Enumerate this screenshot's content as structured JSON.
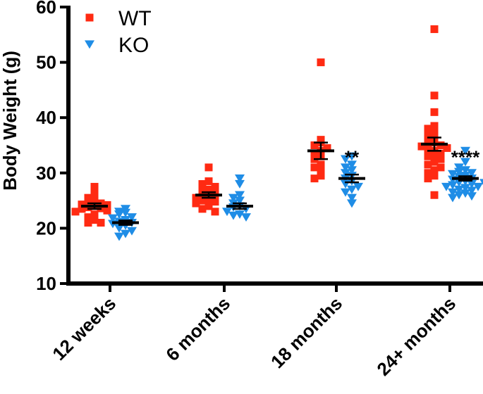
{
  "chart_data": {
    "type": "scatter",
    "title": "",
    "xlabel": "",
    "ylabel": "Body  Weight (g)",
    "ylim": [
      10,
      60
    ],
    "yticks": [
      "10",
      "20",
      "30",
      "40",
      "50",
      "60"
    ],
    "grid": false,
    "legend_position": "top-left",
    "categories": [
      "12 weeks",
      "6 months",
      "18 months",
      "24+ months"
    ],
    "colors": {
      "WT": "#ff2a12",
      "KO": "#1f8de6",
      "stat": "#000000"
    },
    "series": [
      {
        "name": "WT",
        "marker": "square",
        "groups": [
          {
            "category": "12 weeks",
            "mean": 24.0,
            "sem": 0.5,
            "values": [
              27.5,
              27.3,
              26.0,
              25.5,
              25.0,
              24.8,
              24.5,
              24.3,
              24.2,
              24.0,
              23.8,
              23.6,
              23.5,
              23.2,
              23.0,
              22.5,
              22.0,
              21.5,
              21.0,
              21.0
            ]
          },
          {
            "category": "6 months",
            "mean": 26.0,
            "sem": 0.5,
            "values": [
              31.0,
              28.5,
              28.0,
              27.5,
              27.0,
              26.8,
              26.5,
              26.3,
              26.0,
              25.8,
              25.5,
              25.2,
              25.0,
              24.8,
              24.5,
              24.0,
              23.5,
              23.0
            ]
          },
          {
            "category": "18 months",
            "mean": 34.0,
            "sem": 1.5,
            "values": [
              50.0,
              36.0,
              35.5,
              35.0,
              34.5,
              34.0,
              33.5,
              33.0,
              32.5,
              31.5,
              31.0,
              30.5,
              29.5,
              29.0
            ]
          },
          {
            "category": "24+ months",
            "mean": 35.2,
            "sem": 1.2,
            "values": [
              56.0,
              44.0,
              41.0,
              38.5,
              38.0,
              37.5,
              37.0,
              36.5,
              36.0,
              35.5,
              35.0,
              35.0,
              34.8,
              34.5,
              34.0,
              33.8,
              33.5,
              33.2,
              33.0,
              32.5,
              32.0,
              31.5,
              31.0,
              30.5,
              30.0,
              29.5,
              29.0,
              26.0
            ]
          }
        ]
      },
      {
        "name": "KO",
        "marker": "triangle-down",
        "groups": [
          {
            "category": "12 weeks",
            "mean": 21.0,
            "sem": 0.4,
            "values": [
              23.5,
              23.0,
              22.8,
              22.5,
              22.0,
              21.8,
              21.5,
              21.2,
              21.0,
              20.8,
              20.5,
              20.0,
              19.5,
              19.0,
              18.5
            ]
          },
          {
            "category": "6 months",
            "mean": 24.0,
            "sem": 0.5,
            "values": [
              29.0,
              28.0,
              26.0,
              25.5,
              25.0,
              24.5,
              24.0,
              23.8,
              23.5,
              23.0,
              22.5,
              22.3,
              22.0
            ]
          },
          {
            "category": "18 months",
            "mean": 29.0,
            "sem": 0.7,
            "values": [
              33.0,
              32.5,
              31.5,
              31.0,
              30.5,
              30.0,
              29.5,
              29.0,
              28.5,
              28.0,
              27.5,
              27.0,
              26.5,
              25.5,
              24.5
            ]
          },
          {
            "category": "24+ months",
            "mean": 29.0,
            "sem": 0.4,
            "values": [
              34.0,
              32.0,
              31.0,
              30.5,
              30.2,
              30.0,
              29.8,
              29.5,
              29.3,
              29.0,
              28.8,
              28.5,
              28.3,
              28.0,
              27.8,
              27.5,
              27.3,
              27.0,
              26.8,
              26.5,
              26.3,
              26.0,
              25.8,
              25.5,
              27.5,
              28.2
            ]
          }
        ]
      }
    ],
    "annotations": [
      {
        "category": "18 months",
        "series": "KO",
        "text": "**",
        "y": 33.5
      },
      {
        "category": "24+ months",
        "series": "KO",
        "text": "****",
        "y": 33.5
      }
    ]
  }
}
